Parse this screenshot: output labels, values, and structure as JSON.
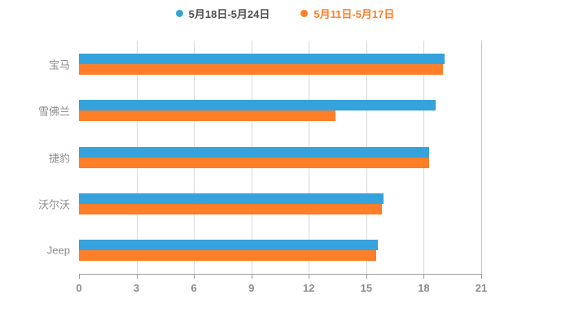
{
  "legend": [
    {
      "label": "5月18日-5月24日",
      "swatch_color": "#36a2db",
      "text_color": "#4d4d4d"
    },
    {
      "label": "5月11日-5月17日",
      "swatch_color": "#ff7e27",
      "text_color": "#ff7e27"
    }
  ],
  "chart_data": {
    "type": "bar",
    "orientation": "horizontal",
    "title": "",
    "xlabel": "",
    "ylabel": "",
    "categories": [
      "宝马",
      "雪佛兰",
      "捷豹",
      "沃尔沃",
      "Jeep"
    ],
    "series": [
      {
        "name": "5月18日-5月24日",
        "color": "#36a2db",
        "values": [
          19.1,
          18.6,
          18.3,
          15.9,
          15.6
        ]
      },
      {
        "name": "5月11日-5月17日",
        "color": "#ff7e27",
        "values": [
          19.0,
          13.4,
          18.3,
          15.8,
          15.5
        ]
      }
    ],
    "xlim": [
      0,
      21
    ],
    "xticks": [
      0,
      3,
      6,
      9,
      12,
      15,
      18,
      21
    ],
    "grid": true,
    "legend_position": "top",
    "background": "#ffffff"
  }
}
